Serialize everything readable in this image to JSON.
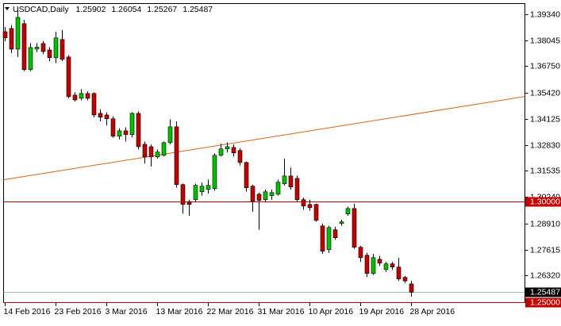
{
  "chart_data": {
    "type": "candlestick",
    "title": "USDCAD,Daily",
    "categories": [
      "14 Feb 2016",
      null,
      null,
      null,
      null,
      null,
      null,
      null,
      "23 Feb 2016",
      null,
      null,
      null,
      null,
      null,
      null,
      null,
      "3 Mar 2016",
      null,
      null,
      null,
      null,
      null,
      null,
      null,
      "13 Mar 2016",
      null,
      null,
      null,
      null,
      null,
      null,
      null,
      "22 Mar 2016",
      null,
      null,
      null,
      null,
      null,
      null,
      null,
      "31 Mar 2016",
      null,
      null,
      null,
      null,
      null,
      null,
      null,
      "10 Apr 2016",
      null,
      null,
      null,
      null,
      null,
      null,
      null,
      "19 Apr 2016",
      null,
      null,
      null,
      null,
      null,
      null,
      null,
      "28 Apr 2016"
    ],
    "open": [
      1.3847,
      1.3863,
      1.376,
      1.3887,
      1.3658,
      1.376,
      1.3788,
      1.3756,
      1.3717,
      1.3808,
      1.3721,
      1.3531,
      1.3515,
      1.3539,
      1.3539,
      1.344,
      1.3432,
      1.3413,
      1.3326,
      1.3353,
      1.3334,
      1.344,
      1.3286,
      1.3274,
      1.3223,
      1.3231,
      1.3294,
      1.3373,
      1.3085,
      1.2998,
      1.301,
      1.3049,
      1.3061,
      1.3065,
      1.3231,
      1.3263,
      1.327,
      1.3255,
      1.3195,
      1.3077,
      1.3037,
      1.301,
      1.303,
      1.3037,
      1.3089,
      1.3128,
      1.3116,
      1.301,
      1.2986,
      1.2986,
      1.2879,
      1.2761,
      1.286,
      1.2891,
      1.2939,
      1.2966,
      1.2773,
      1.2733,
      1.2642,
      1.2713,
      1.2662,
      1.269,
      1.2674,
      1.2623,
      1.25902
    ],
    "high": [
      1.387,
      1.388,
      1.3966,
      1.3905,
      1.379,
      1.379,
      1.38,
      1.377,
      1.3847,
      1.3855,
      1.373,
      1.3545,
      1.356,
      1.355,
      1.3545,
      1.346,
      1.3445,
      1.3425,
      1.3365,
      1.337,
      1.3445,
      1.345,
      1.33,
      1.3285,
      1.326,
      1.33,
      1.341,
      1.34,
      1.309,
      1.301,
      1.309,
      1.3095,
      1.311,
      1.324,
      1.329,
      1.3295,
      1.3285,
      1.3265,
      1.32,
      1.3085,
      1.3045,
      1.306,
      1.306,
      1.311,
      1.3215,
      1.317,
      1.313,
      1.302,
      1.301,
      1.299,
      1.289,
      1.288,
      1.2875,
      1.291,
      1.2975,
      1.299,
      1.278,
      1.2745,
      1.274,
      1.273,
      1.27,
      1.27,
      1.272,
      1.263,
      1.26054
    ],
    "low": [
      1.38,
      1.374,
      1.3721,
      1.365,
      1.365,
      1.3745,
      1.3735,
      1.37,
      1.369,
      1.37,
      1.3515,
      1.35,
      1.3505,
      1.3505,
      1.342,
      1.34,
      1.338,
      1.3318,
      1.331,
      1.33,
      1.332,
      1.326,
      1.319,
      1.3175,
      1.3215,
      1.3225,
      1.3285,
      1.307,
      1.294,
      1.293,
      1.3,
      1.303,
      1.304,
      1.3055,
      1.3225,
      1.3245,
      1.3225,
      1.318,
      1.305,
      1.295,
      1.286,
      1.3,
      1.301,
      1.303,
      1.308,
      1.306,
      1.3,
      1.296,
      1.2955,
      1.29,
      1.274,
      1.2745,
      1.281,
      1.288,
      1.293,
      1.2765,
      1.27,
      1.2625,
      1.2635,
      1.268,
      1.265,
      1.266,
      1.2605,
      1.2595,
      1.25267
    ],
    "close": [
      1.3816,
      1.376,
      1.3918,
      1.3658,
      1.3768,
      1.377,
      1.3748,
      1.3717,
      1.3816,
      1.3709,
      1.3523,
      1.3507,
      1.3539,
      1.3515,
      1.3432,
      1.3421,
      1.3413,
      1.3326,
      1.3353,
      1.3334,
      1.344,
      1.3274,
      1.3223,
      1.3223,
      1.3247,
      1.3294,
      1.3373,
      1.3085,
      1.2986,
      1.2986,
      1.3081,
      1.3077,
      1.3081,
      1.3231,
      1.3263,
      1.3274,
      1.3243,
      1.3195,
      1.3069,
      1.3002,
      1.3006,
      1.3049,
      1.3045,
      1.3097,
      1.3128,
      1.3073,
      1.301,
      1.2978,
      1.297,
      1.2907,
      1.2753,
      1.2871,
      1.282,
      1.2899,
      1.2966,
      1.2773,
      1.2721,
      1.2642,
      1.2721,
      1.2694,
      1.269,
      1.2674,
      1.2615,
      1.2605,
      1.25487
    ],
    "up_color": "#00c000",
    "down_color": "#c00000",
    "ylim": [
      1.2495,
      1.3989
    ],
    "yticks": [
      {
        "value": 1.3934,
        "label": "1.39340"
      },
      {
        "value": 1.38045,
        "label": "1.38045"
      },
      {
        "value": 1.3675,
        "label": "1.36750"
      },
      {
        "value": 1.3542,
        "label": "1.35420"
      },
      {
        "value": 1.34125,
        "label": "1.34125"
      },
      {
        "value": 1.3283,
        "label": "1.32830"
      },
      {
        "value": 1.31535,
        "label": "1.31535"
      },
      {
        "value": 1.3024,
        "label": "1.30240"
      },
      {
        "value": 1.2891,
        "label": "1.28910"
      },
      {
        "value": 1.27615,
        "label": "1.27615"
      },
      {
        "value": 1.2632,
        "label": "1.26320"
      }
    ],
    "hlines": [
      {
        "value": 1.3,
        "label": "1.30000",
        "color": "#c00000"
      },
      {
        "value": 1.25,
        "label": "1.25000",
        "color": "#c00000"
      }
    ],
    "trendline": {
      "values": [
        1.3109,
        1.3524
      ],
      "color": "#e06010"
    }
  }
}
